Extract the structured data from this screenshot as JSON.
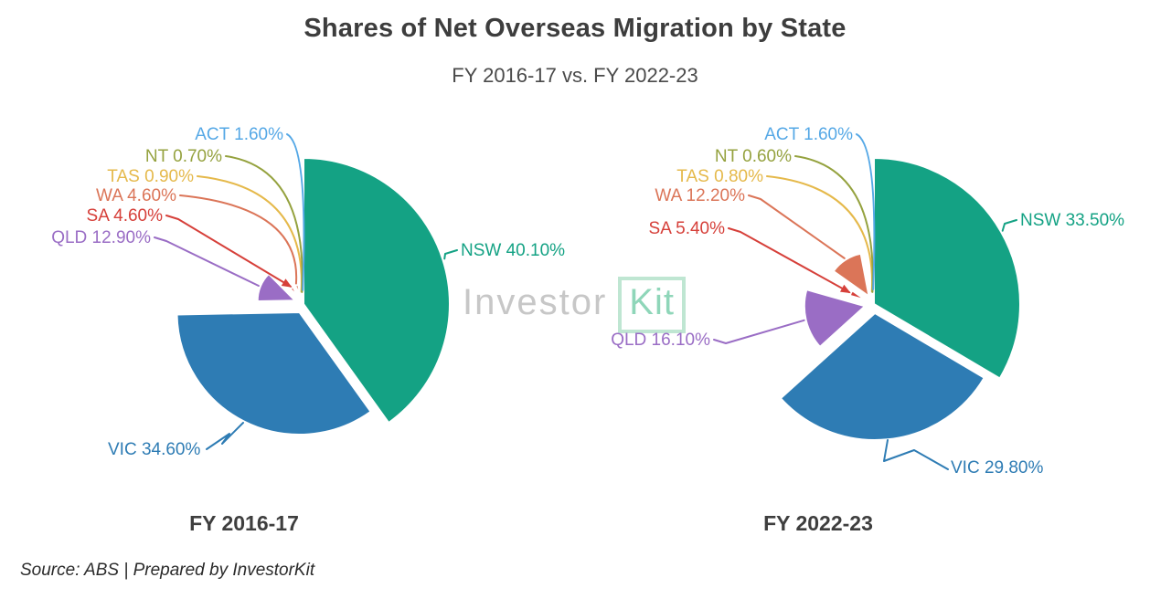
{
  "header": {
    "title": "Shares of Net Overseas Migration by State",
    "subtitle": "FY 2016-17 vs. FY 2022-23",
    "title_color": "#3d3d3d"
  },
  "watermark": {
    "part1": "Investor",
    "part2": "Kit",
    "part1_color": "#c7c7c7",
    "part2_color": "#8fd6b9",
    "box_color": "#bfe6d2"
  },
  "footer": {
    "source": "Source: ABS | Prepared by InvestorKit"
  },
  "chart_data": [
    {
      "type": "pie",
      "variant": "variable-radius-pie",
      "title": "FY 2016-17",
      "unit": "%",
      "start_angle": "12 o'clock, clockwise",
      "legend_position": "none (direct labels with leader lines)",
      "label_format": "{label} {value}%",
      "slices": [
        {
          "label": "NSW",
          "value": 40.1,
          "color": "#14a284"
        },
        {
          "label": "VIC",
          "value": 34.6,
          "color": "#2e7cb4"
        },
        {
          "label": "QLD",
          "value": 12.9,
          "color": "#9a6dc5"
        },
        {
          "label": "SA",
          "value": 4.6,
          "color": "#d6403a"
        },
        {
          "label": "WA",
          "value": 4.6,
          "color": "#db7558"
        },
        {
          "label": "TAS",
          "value": 0.9,
          "color": "#e5b94b"
        },
        {
          "label": "NT",
          "value": 0.7,
          "color": "#95a23f"
        },
        {
          "label": "ACT",
          "value": 1.6,
          "color": "#55a8e6"
        }
      ]
    },
    {
      "type": "pie",
      "variant": "variable-radius-pie",
      "title": "FY 2022-23",
      "unit": "%",
      "start_angle": "12 o'clock, clockwise",
      "legend_position": "none (direct labels with leader lines)",
      "label_format": "{label} {value}%",
      "slices": [
        {
          "label": "NSW",
          "value": 33.5,
          "color": "#14a284"
        },
        {
          "label": "VIC",
          "value": 29.8,
          "color": "#2e7cb4"
        },
        {
          "label": "QLD",
          "value": 16.1,
          "color": "#9a6dc5"
        },
        {
          "label": "SA",
          "value": 5.4,
          "color": "#d6403a"
        },
        {
          "label": "WA",
          "value": 12.2,
          "color": "#db7558"
        },
        {
          "label": "TAS",
          "value": 0.8,
          "color": "#e5b94b"
        },
        {
          "label": "NT",
          "value": 0.6,
          "color": "#95a23f"
        },
        {
          "label": "ACT",
          "value": 1.6,
          "color": "#55a8e6"
        }
      ]
    }
  ]
}
